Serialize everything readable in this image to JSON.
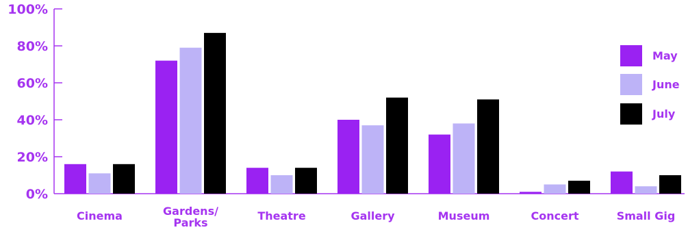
{
  "chart_data": {
    "type": "bar",
    "title": "",
    "xlabel": "",
    "ylabel": "",
    "ylim": [
      0,
      100
    ],
    "yticks": [
      "0%",
      "20%",
      "40%",
      "60%",
      "80%",
      "100%"
    ],
    "ytick_values": [
      0,
      20,
      40,
      60,
      80,
      100
    ],
    "categories": [
      "Cinema",
      "Gardens/ Parks",
      "Theatre",
      "Gallery",
      "Museum",
      "Concert",
      "Small Gig"
    ],
    "category_lines": [
      [
        "Cinema"
      ],
      [
        "Gardens/",
        "Parks"
      ],
      [
        "Theatre"
      ],
      [
        "Gallery"
      ],
      [
        "Museum"
      ],
      [
        "Concert"
      ],
      [
        "Small Gig"
      ]
    ],
    "series": [
      {
        "name": "May",
        "color": "#9a22f2",
        "values": [
          16,
          72,
          14,
          40,
          32,
          1,
          12
        ]
      },
      {
        "name": "June",
        "color": "#bdb3f7",
        "values": [
          11,
          79,
          10,
          37,
          38,
          5,
          4
        ]
      },
      {
        "name": "July",
        "color": "#000000",
        "values": [
          16,
          87,
          14,
          52,
          51,
          7,
          10
        ]
      }
    ],
    "legend_position": "right",
    "grid": false,
    "text_color": "#a534f0",
    "axis_color": "#a534f0"
  }
}
